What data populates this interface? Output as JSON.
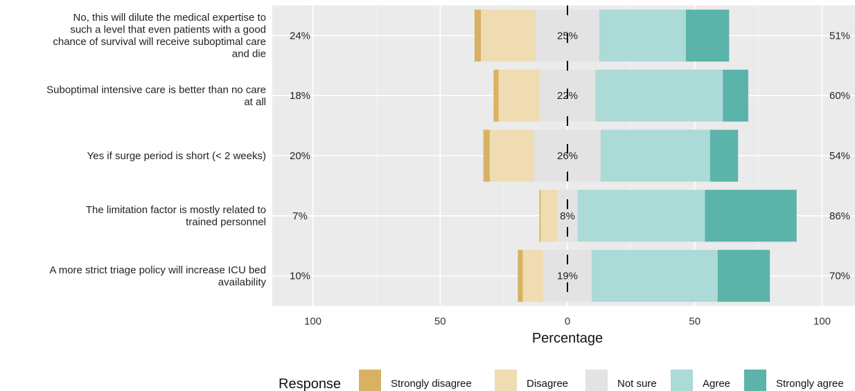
{
  "chart_data": {
    "type": "bar",
    "subtype": "diverging-stacked-likert",
    "xlabel": "Percentage",
    "x_ticks": [
      -100,
      -50,
      0,
      50,
      100
    ],
    "x_tick_labels": [
      "100",
      "50",
      "0",
      "50",
      "100"
    ],
    "xlim": [
      -100,
      100
    ],
    "grid": true,
    "legend_title": "Response",
    "legend_position": "bottom",
    "responses": [
      "Strongly disagree",
      "Disagree",
      "Not sure",
      "Agree",
      "Strongly agree"
    ],
    "colors": [
      "#d8b262",
      "#efdcb2",
      "#e3e3e3",
      "#acdad6",
      "#5bb3aa"
    ],
    "items": [
      {
        "label": "No, this will dilute the medical expertise to such a level that even patients with a good chance of survival will receive suboptimal care and die",
        "label_lines": [
          "No, this will dilute the medical expertise to",
          "such a level that even patients with a good",
          "chance of survival will receive suboptimal care",
          "and die"
        ],
        "values": [
          2.5,
          21.5,
          25,
          34,
          17
        ],
        "low_pct": "24%",
        "mid_pct": "25%",
        "high_pct": "51%"
      },
      {
        "label": "Suboptimal intensive care is better than no care at all",
        "label_lines": [
          "Suboptimal intensive care is better than no care",
          "at all"
        ],
        "values": [
          2,
          16,
          22,
          50,
          10
        ],
        "low_pct": "18%",
        "mid_pct": "22%",
        "high_pct": "60%"
      },
      {
        "label": "Yes if surge period is short (< 2 weeks)",
        "label_lines": [
          "Yes if surge period is short (< 2 weeks)"
        ],
        "values": [
          2.5,
          17.5,
          26,
          43,
          11
        ],
        "low_pct": "20%",
        "mid_pct": "26%",
        "high_pct": "54%"
      },
      {
        "label": "The limitation factor is mostly related to trained personnel",
        "label_lines": [
          "The limitation factor is mostly related to",
          "trained personnel"
        ],
        "values": [
          0.5,
          6.5,
          8,
          50,
          36
        ],
        "low_pct": "7%",
        "mid_pct": "8%",
        "high_pct": "86%"
      },
      {
        "label": "A more strict triage policy will increase ICU bed availability",
        "label_lines": [
          "A more strict triage policy will increase ICU bed",
          "availability"
        ],
        "values": [
          2,
          8,
          19,
          49.5,
          20.5
        ],
        "low_pct": "10%",
        "mid_pct": "19%",
        "high_pct": "70%"
      }
    ]
  }
}
